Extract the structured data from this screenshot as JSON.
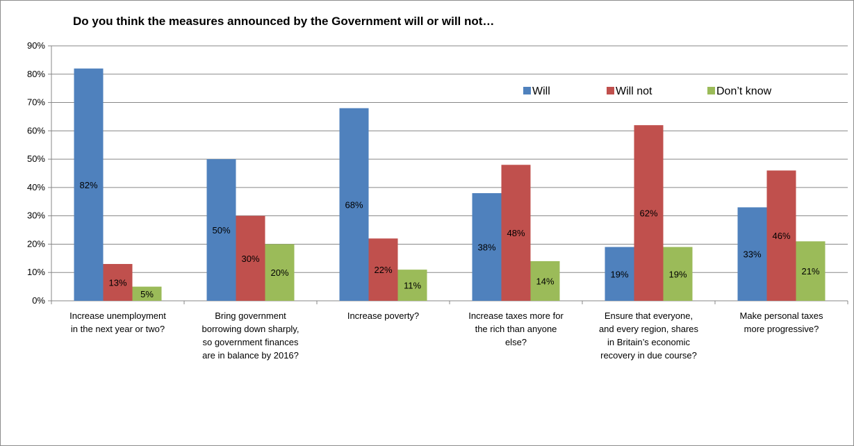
{
  "chart_data": {
    "type": "bar",
    "title": "Do you think the measures announced by the Government will or will not…",
    "xlabel": "",
    "ylabel": "",
    "ylim": [
      0,
      90
    ],
    "yticks": [
      "0%",
      "10%",
      "20%",
      "30%",
      "40%",
      "50%",
      "60%",
      "70%",
      "80%",
      "90%"
    ],
    "grid": true,
    "legend_position": "top-right",
    "categories": [
      [
        "Increase unemployment",
        "in the next year or two?"
      ],
      [
        "Bring government",
        "borrowing down sharply,",
        "so government finances",
        "are in balance by 2016?"
      ],
      [
        "Increase poverty?"
      ],
      [
        "Increase taxes more for",
        "the rich than anyone",
        "else?"
      ],
      [
        "Ensure that everyone,",
        "and every region, shares",
        "in Britain’s economic",
        "recovery in due course?"
      ],
      [
        "Make personal taxes",
        "more progressive?"
      ]
    ],
    "series": [
      {
        "name": "Will",
        "color": "#4f81bd",
        "values": [
          82,
          50,
          68,
          38,
          19,
          33
        ],
        "labels": [
          "82%",
          "50%",
          "68%",
          "38%",
          "19%",
          "33%"
        ]
      },
      {
        "name": "Will not",
        "color": "#c0504d",
        "values": [
          13,
          30,
          22,
          48,
          62,
          46
        ],
        "labels": [
          "13%",
          "30%",
          "22%",
          "48%",
          "62%",
          "46%"
        ]
      },
      {
        "name": "Don’t know",
        "color": "#9bbb59",
        "values": [
          5,
          20,
          11,
          14,
          19,
          21
        ],
        "labels": [
          "5%",
          "20%",
          "11%",
          "14%",
          "19%",
          "21%"
        ]
      }
    ]
  }
}
